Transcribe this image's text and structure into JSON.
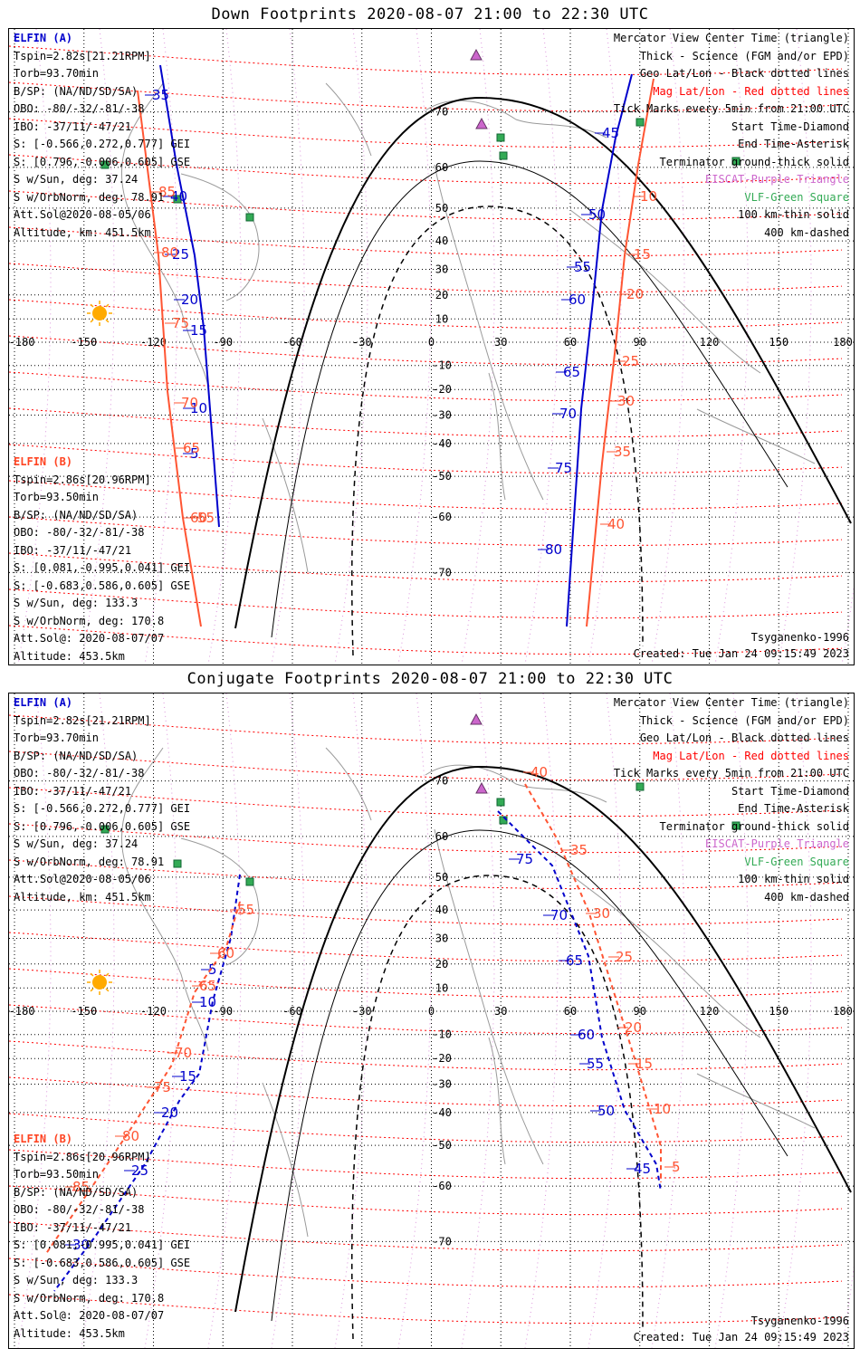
{
  "down": {
    "title": "Down Footprints 2020-08-07 21:00 to 22:30 UTC",
    "elfin_a_label": "ELFIN (A)",
    "elfin_b_label": "ELFIN (B)",
    "a_info": [
      "Tspin=2.82s[21.21RPM]",
      "Torb=93.70min",
      "B/SP: (NA/ND/SD/SA)",
      "OBO: -80/-32/-81/-38",
      "IBO: -37/11/-47/21",
      "S: [-0.566,0.272,0.777] GEI",
      "S: [0.796,-0.006,0.605] GSE",
      "S w/Sun, deg: 37.24",
      "S w/OrbNorm, deg: 78.91",
      "Att.Sol@2020-08-05/06",
      "Altitude, km: 451.5km"
    ],
    "b_info": [
      "Tspin=2.86s[20.96RPM]",
      "Torb=93.50min",
      "B/SP: (NA/ND/SD/SA)",
      "OBO: -80/-32/-81/-38",
      "IBO: -37/11/-47/21",
      "S: [0.081,-0.995,0.041] GEI",
      "S: [-0.683,0.586,0.605] GSE",
      "S w/Sun, deg: 133.3",
      "S w/OrbNorm, deg: 170.8",
      "Att.Sol@: 2020-08-07/07",
      "Altitude: 453.5km"
    ],
    "legend": [
      "Mercator View Center Time (triangle)",
      "Thick - Science (FGM and/or EPD)",
      "Geo Lat/Lon - Black dotted lines",
      "Mag Lat/Lon - Red dotted lines",
      "Tick Marks every 5min from 21:00 UTC",
      "Start Time-Diamond",
      "End Time-Asterisk",
      "Terminator ground-thick solid",
      "EISCAT-Purple Triangle",
      "VLF-Green Square",
      "100 km-thin solid",
      "400 km-dashed"
    ],
    "model": "Tsyganenko-1996",
    "created": "Created: Tue Jan 24 09:15:49 2023"
  },
  "conj": {
    "title": "Conjugate Footprints 2020-08-07 21:00 to 22:30 UTC",
    "elfin_a_label": "ELFIN (A)",
    "elfin_b_label": "ELFIN (B)",
    "a_info": [
      "Tspin=2.82s[21.21RPM]",
      "Torb=93.70min",
      "B/SP: (NA/ND/SD/SA)",
      "OBO: -80/-32/-81/-38",
      "IBO: -37/11/-47/21",
      "S: [-0.566,0.272,0.777] GEI",
      "S: [0.796,-0.006,0.605] GSE",
      "S w/Sun, deg: 37.24",
      "S w/OrbNorm, deg: 78.91",
      "Att.Sol@2020-08-05/06",
      "Altitude, km: 451.5km"
    ],
    "b_info": [
      "Tspin=2.86s[20.96RPM]",
      "Torb=93.50min",
      "B/SP: (NA/ND/SD/SA)",
      "OBO: -80/-32/-81/-38",
      "IBO: -37/11/-47/21",
      "S: [0.081,-0.995,0.041] GEI",
      "S: [-0.683,0.586,0.605] GSE",
      "S w/Sun, deg: 133.3",
      "S w/OrbNorm, deg: 170.8",
      "Att.Sol@: 2020-08-07/07",
      "Altitude: 453.5km"
    ],
    "legend": [
      "Mercator View Center Time (triangle)",
      "Thick - Science (FGM and/or EPD)",
      "Geo Lat/Lon - Black dotted lines",
      "Mag Lat/Lon - Red dotted lines",
      "Tick Marks every 5min from 21:00 UTC",
      "Start Time-Diamond",
      "End Time-Asterisk",
      "Terminator ground-thick solid",
      "EISCAT-Purple Triangle",
      "VLF-Green Square",
      "100 km-thin solid",
      "400 km-dashed"
    ],
    "model": "Tsyganenko-1996",
    "created": "Created: Tue Jan 24 09:15:49 2023"
  },
  "axes": {
    "lon_ticks": [
      "-180",
      "-150",
      "-120",
      "-90",
      "-60",
      "-30",
      "0",
      "30",
      "60",
      "90",
      "120",
      "150",
      "180"
    ],
    "lat_ticks": [
      "70",
      "60",
      "50",
      "40",
      "30",
      "20",
      "10",
      "-10",
      "-20",
      "-30",
      "-40",
      "-50",
      "-60",
      "-70"
    ]
  },
  "colors": {
    "elfin_a": "#0000cc",
    "elfin_b": "#ff5533",
    "mag_grid": "#ff0000",
    "geo_grid": "#000000",
    "eiscat": "#cc66cc",
    "vlf": "#33aa55",
    "sun": "#ffaa00"
  },
  "tracks": {
    "down_a_labels": [
      "35",
      "40",
      "25",
      "20",
      "15",
      "10",
      "5",
      "45",
      "50",
      "55",
      "60",
      "65",
      "70",
      "75",
      "80"
    ],
    "down_b_labels": [
      "85",
      "80",
      "75",
      "70",
      "65",
      "60",
      "55",
      "10",
      "15",
      "20",
      "25",
      "30",
      "35",
      "40"
    ],
    "conj_a_labels": [
      "75",
      "70",
      "65",
      "60",
      "55",
      "50",
      "45",
      "5",
      "10",
      "15",
      "20",
      "25",
      "30"
    ],
    "conj_b_labels": [
      "40",
      "35",
      "30",
      "25",
      "20",
      "15",
      "10",
      "5",
      "55",
      "60",
      "65",
      "70",
      "75",
      "80",
      "85"
    ]
  }
}
